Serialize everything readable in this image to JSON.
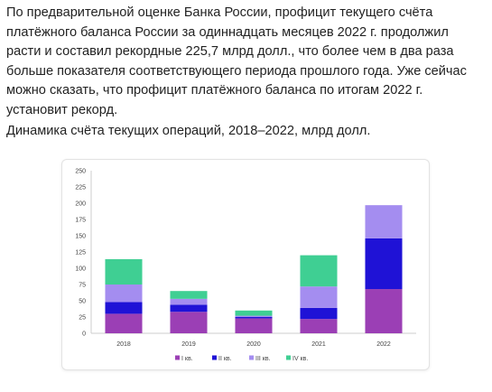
{
  "article": {
    "paragraph": "По предварительной оценке Банка России, профицит текущего счёта платёжного баланса России за одиннадцать месяцев 2022 г. продолжил расти и составил рекордные 225,7 млрд долл., что более чем в два раза больше показателя соответствующего периода прошлого года. Уже сейчас можно сказать, что профицит платёжного баланса по итогам 2022 г. установит рекорд.",
    "chart_caption": "Динамика счёта текущих операций, 2018–2022, млрд долл."
  },
  "chart_data": {
    "type": "bar",
    "stacked": true,
    "categories": [
      "2018",
      "2019",
      "2020",
      "2021",
      "2022"
    ],
    "ylim": [
      0,
      250
    ],
    "yticks": [
      "0",
      "25",
      "50",
      "75",
      "100",
      "125",
      "150",
      "175",
      "200",
      "225",
      "250"
    ],
    "grid": false,
    "legend_position": "bottom",
    "series": [
      {
        "name": "I кв.",
        "color": "#9b3fb5",
        "values": [
          30,
          33,
          23,
          22,
          68
        ]
      },
      {
        "name": "II кв.",
        "color": "#1f12d6",
        "values": [
          18,
          11,
          2,
          17,
          78
        ]
      },
      {
        "name": "III кв.",
        "color": "#a48df0",
        "values": [
          27,
          9,
          2,
          33,
          51
        ]
      },
      {
        "name": "IV кв.",
        "color": "#3fcf93",
        "values": [
          39,
          12,
          8,
          48,
          0
        ]
      }
    ]
  }
}
